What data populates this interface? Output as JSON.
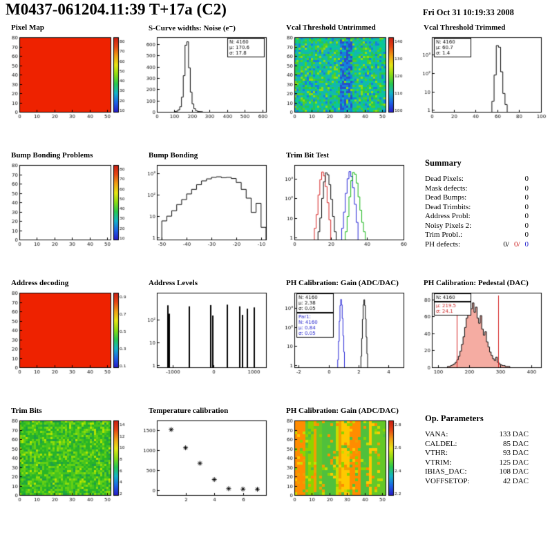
{
  "header": {
    "title": "M0437-061204.11:39 T+17a (C2)",
    "date": "Fri Oct 31 10:19:33 2008"
  },
  "summary": {
    "title": "Summary",
    "rows": [
      {
        "label": "Dead Pixels:",
        "value": "0"
      },
      {
        "label": "Mask defects:",
        "value": "0"
      },
      {
        "label": "Dead Bumps:",
        "value": "0"
      },
      {
        "label": "Dead Trimbits:",
        "value": "0"
      },
      {
        "label": "Address Probl:",
        "value": "0"
      },
      {
        "label": "Noisy Pixels 2:",
        "value": "0"
      },
      {
        "label": "Trim Probl.:",
        "value": "0"
      }
    ],
    "ph_defects": {
      "label": "PH defects:",
      "values": [
        "0/",
        "0/",
        "0"
      ],
      "colors": [
        "#000000",
        "#cc2020",
        "#2020cc"
      ]
    }
  },
  "op_parameters": {
    "title": "Op. Parameters",
    "rows": [
      {
        "label": "VANA:",
        "value": "133 DAC"
      },
      {
        "label": "CALDEL:",
        "value": "85 DAC"
      },
      {
        "label": "VTHR:",
        "value": "93 DAC"
      },
      {
        "label": "VTRIM:",
        "value": "125 DAC"
      },
      {
        "label": "IBIAS_DAC:",
        "value": "108 DAC"
      },
      {
        "label": "VOFFSETOP:",
        "value": "42 DAC"
      }
    ]
  },
  "colors": {
    "map_red": "#ee2200",
    "accent_red": "#cc2020",
    "accent_blue": "#2020cc",
    "accent_green": "#10b410"
  },
  "chart_data": [
    {
      "name": "pixel-map",
      "title": "Pixel Map",
      "type": "heatmap",
      "mode": "uniform",
      "fill_color": "#ee2200",
      "xlim": [
        0,
        52
      ],
      "ylim": [
        0,
        80
      ],
      "xticks": [
        0,
        10,
        20,
        30,
        40,
        50
      ],
      "yticks": [
        0,
        10,
        20,
        30,
        40,
        50,
        60,
        70,
        80
      ],
      "colorbar": {
        "colors": [
          "#281cc8",
          "#1c64e6",
          "#14b4c8",
          "#28c850",
          "#8cdc14",
          "#e6e614",
          "#f0a014",
          "#e64614",
          "#c81e14"
        ],
        "ticks": [
          10,
          20,
          30,
          40,
          50,
          60,
          70,
          80
        ]
      }
    },
    {
      "name": "scurve-noise",
      "title": "S-Curve widths: Noise (e⁻)",
      "type": "histogram",
      "xlim": [
        0,
        620
      ],
      "ylim": [
        0,
        660
      ],
      "xticks": [
        0,
        100,
        200,
        300,
        400,
        500,
        600
      ],
      "yticks": [
        0,
        100,
        200,
        300,
        400,
        500,
        600
      ],
      "series": [
        {
          "color": "#000000",
          "x0": 100,
          "binw": 10,
          "counts": [
            2,
            6,
            18,
            45,
            130,
            320,
            590,
            620,
            390,
            175,
            70,
            28,
            10,
            4,
            2,
            1
          ]
        }
      ],
      "stats": [
        {
          "color": "#000000",
          "lines": [
            "N: 4160",
            "μ: 170.6",
            "σ: 17.8"
          ]
        }
      ],
      "stats_pos": "right"
    },
    {
      "name": "vcal-threshold-untrimmed",
      "title": "Vcal Threshold Untrimmed",
      "type": "heatmap",
      "mode": "noise",
      "colors": [
        "#14b4b4",
        "#0ac896",
        "#28c850",
        "#50d028",
        "#1482dc",
        "#8cdc14"
      ],
      "weights": [
        0.28,
        0.24,
        0.18,
        0.1,
        0.12,
        0.08
      ],
      "band": {
        "x0": 26,
        "x1": 33,
        "colors": [
          "#2850c8",
          "#1482dc"
        ]
      },
      "xlim": [
        0,
        52
      ],
      "ylim": [
        0,
        80
      ],
      "xticks": [
        0,
        10,
        20,
        30,
        40,
        50
      ],
      "yticks": [
        0,
        10,
        20,
        30,
        40,
        50,
        60,
        70,
        80
      ],
      "colorbar": {
        "colors": [
          "#281cc8",
          "#1c64e6",
          "#14b4c8",
          "#28c850",
          "#8cdc14",
          "#e6e614",
          "#f0a014",
          "#e64614",
          "#c81e14"
        ],
        "ticks": [
          100,
          110,
          120,
          130,
          140
        ]
      }
    },
    {
      "name": "vcal-threshold-trimmed",
      "title": "Vcal Threshold Trimmed",
      "type": "histogram",
      "ylog": true,
      "xlim": [
        0,
        100
      ],
      "ylim": [
        0.8,
        9000
      ],
      "xticks": [
        0,
        20,
        40,
        60,
        80,
        100
      ],
      "yticks_log": [
        [
          1,
          "1"
        ],
        [
          10,
          "10"
        ],
        [
          100,
          "10²"
        ],
        [
          1000,
          "10³"
        ]
      ],
      "series": [
        {
          "color": "#000000",
          "x0": 55,
          "binw": 2,
          "counts": [
            3,
            80,
            3200,
            2600,
            120,
            8,
            2
          ]
        }
      ],
      "stats": [
        {
          "color": "#000000",
          "lines": [
            "N: 4160",
            "μ: 60.7",
            "σ: 1.4"
          ]
        }
      ],
      "stats_pos": "left"
    },
    {
      "name": "bump-bonding-problems",
      "title": "Bump Bonding Problems",
      "type": "heatmap",
      "mode": "empty",
      "xlim": [
        0,
        52
      ],
      "ylim": [
        0,
        80
      ],
      "xticks": [
        0,
        10,
        20,
        30,
        40,
        50
      ],
      "yticks": [
        0,
        10,
        20,
        30,
        40,
        50,
        60,
        70,
        80
      ],
      "colorbar": {
        "colors": [
          "#281cc8",
          "#1c64e6",
          "#14b4c8",
          "#28c850",
          "#8cdc14",
          "#e6e614",
          "#f0a014",
          "#e64614",
          "#c81e14"
        ],
        "ticks": [
          10,
          20,
          30,
          40,
          50,
          60,
          70,
          80
        ]
      }
    },
    {
      "name": "bump-bonding",
      "title": "Bump Bonding",
      "type": "histogram",
      "ylog": true,
      "xlim": [
        -52,
        -8
      ],
      "ylim": [
        0.8,
        2500
      ],
      "xticks": [
        -50,
        -40,
        -30,
        -20,
        -10
      ],
      "yticks_log": [
        [
          1,
          "1"
        ],
        [
          10,
          "10"
        ],
        [
          100,
          "10²"
        ],
        [
          1000,
          "10³"
        ]
      ],
      "series": [
        {
          "color": "#000000",
          "x0": -50,
          "binw": 2,
          "counts": [
            6,
            10,
            18,
            35,
            60,
            110,
            180,
            300,
            450,
            560,
            660,
            700,
            640,
            660,
            580,
            380,
            180,
            70,
            15,
            40,
            3
          ]
        }
      ]
    },
    {
      "name": "trim-bit-test",
      "title": "Trim Bit Test",
      "type": "histogram",
      "ylog": true,
      "xlim": [
        0,
        60
      ],
      "ylim": [
        0.8,
        5000
      ],
      "xticks": [
        0,
        20,
        40,
        60
      ],
      "yticks_log": [
        [
          1,
          "1"
        ],
        [
          10,
          "10"
        ],
        [
          100,
          "10²"
        ],
        [
          1000,
          "10³"
        ]
      ],
      "series": [
        {
          "color": "#d42020",
          "x0": 11,
          "binw": 1,
          "counts": [
            3,
            15,
            150,
            900,
            2200,
            1400,
            400,
            60,
            8
          ]
        },
        {
          "color": "#000000",
          "x0": 13,
          "binw": 1,
          "counts": [
            2,
            10,
            100,
            700,
            2000,
            1600,
            500,
            90,
            12,
            2
          ]
        },
        {
          "color": "#2020d4",
          "x0": 26,
          "binw": 1,
          "counts": [
            3,
            20,
            180,
            1000,
            2300,
            1300,
            350,
            50,
            6
          ]
        },
        {
          "color": "#10b410",
          "x0": 28,
          "binw": 1,
          "counts": [
            2,
            12,
            120,
            800,
            2100,
            1700,
            600,
            120,
            25,
            6,
            2
          ]
        }
      ]
    },
    {
      "name": "address-decoding",
      "title": "Address decoding",
      "type": "heatmap",
      "mode": "uniform",
      "fill_color": "#ee2200",
      "xlim": [
        0,
        52
      ],
      "ylim": [
        0,
        80
      ],
      "xticks": [
        0,
        10,
        20,
        30,
        40,
        50
      ],
      "yticks": [
        0,
        10,
        20,
        30,
        40,
        50,
        60,
        70,
        80
      ],
      "colorbar": {
        "colors": [
          "#281cc8",
          "#1c64e6",
          "#14b4c8",
          "#28c850",
          "#8cdc14",
          "#e6e614",
          "#f0a014",
          "#e64614",
          "#c81e14"
        ],
        "ticks": [
          0.1,
          0.3,
          0.5,
          0.7,
          0.9
        ]
      }
    },
    {
      "name": "address-levels",
      "title": "Address Levels",
      "type": "histogram",
      "ylog": true,
      "xlim": [
        -1400,
        1300
      ],
      "ylim": [
        0.8,
        1500
      ],
      "xticks": [
        -1000,
        0,
        1000
      ],
      "yticks_log": [
        [
          1,
          "1"
        ],
        [
          10,
          "10"
        ],
        [
          100,
          "10²"
        ]
      ],
      "series": [
        {
          "color": "#000000",
          "spikes": [
            [
              -1150,
              420
            ],
            [
              -1110,
              180
            ],
            [
              -620,
              380
            ],
            [
              -90,
              430
            ],
            [
              -40,
              150
            ],
            [
              320,
              450
            ],
            [
              640,
              380
            ],
            [
              700,
              160
            ],
            [
              820,
              300
            ],
            [
              1000,
              340
            ]
          ]
        }
      ]
    },
    {
      "name": "ph-calibration-gain",
      "title": "PH Calibration: Gain (ADC/DAC)",
      "type": "histogram",
      "ylog": true,
      "xlim": [
        -2.3,
        5
      ],
      "ylim": [
        0.8,
        6000
      ],
      "xticks": [
        -2,
        0,
        2,
        4
      ],
      "yticks_log": [
        [
          1,
          "1"
        ],
        [
          10,
          "10"
        ],
        [
          100,
          "10²"
        ],
        [
          1000,
          "10³"
        ]
      ],
      "series": [
        {
          "color": "#000000",
          "x0": 2.15,
          "binw": 0.05,
          "counts": [
            3,
            25,
            250,
            1400,
            2600,
            1300,
            260,
            30,
            4
          ]
        },
        {
          "color": "#2020d4",
          "x0": 0.6,
          "binw": 0.05,
          "counts": [
            2,
            18,
            200,
            1300,
            2700,
            1400,
            280,
            35,
            5
          ]
        }
      ],
      "stats": [
        {
          "color": "#000000",
          "lines": [
            "N: 4160",
            "μ: 2.38",
            "σ: 0.05"
          ]
        },
        {
          "color": "#2020cc",
          "lines": [
            "Par1:",
            "N: 4160",
            "μ: 0.84",
            "σ: 0.05"
          ]
        }
      ],
      "stats_pos": "left"
    },
    {
      "name": "ph-calibration-pedestal",
      "title": "PH Calibration: Pedestal (DAC)",
      "type": "histogram",
      "xlim": [
        80,
        430
      ],
      "ylim": [
        0,
        88
      ],
      "xticks": [
        100,
        200,
        300,
        400
      ],
      "yticks": [
        0,
        20,
        40,
        60,
        80
      ],
      "series": [
        {
          "color": "#000000",
          "fill": "#e84830",
          "x0": 130,
          "binw": 5,
          "counts": [
            1,
            1,
            2,
            3,
            4,
            6,
            9,
            13,
            19,
            27,
            36,
            47,
            58,
            67,
            73,
            69,
            76,
            65,
            71,
            58,
            52,
            61,
            45,
            38,
            42,
            30,
            24,
            18,
            14,
            10,
            8,
            12,
            6,
            4,
            3,
            2,
            2,
            1,
            1,
            1
          ]
        }
      ],
      "vlines": [
        {
          "x": 160,
          "color": "#d42020"
        },
        {
          "x": 292,
          "color": "#d42020"
        }
      ],
      "stats": [
        {
          "color": "#000000",
          "lines": [
            "N: 4160"
          ]
        },
        {
          "color": "#cc2020",
          "lines": [
            "μ: 219.5",
            "σ: 24.1"
          ]
        }
      ],
      "stats_pos": "left"
    },
    {
      "name": "trim-bits",
      "title": "Trim Bits",
      "type": "heatmap",
      "mode": "noise",
      "colors": [
        "#28b428",
        "#46c41e",
        "#64d014",
        "#8cdc0a",
        "#b4e400",
        "#1ea046"
      ],
      "weights": [
        0.3,
        0.25,
        0.2,
        0.1,
        0.05,
        0.1
      ],
      "xlim": [
        0,
        52
      ],
      "ylim": [
        0,
        80
      ],
      "xticks": [
        0,
        10,
        20,
        30,
        40,
        50
      ],
      "yticks": [
        0,
        10,
        20,
        30,
        40,
        50,
        60,
        70,
        80
      ],
      "colorbar": {
        "colors": [
          "#281cc8",
          "#1c64e6",
          "#14b4c8",
          "#28c850",
          "#8cdc14",
          "#e6e614",
          "#f0a014",
          "#e64614",
          "#c81e14"
        ],
        "ticks": [
          2,
          4,
          6,
          8,
          10,
          12,
          14
        ]
      }
    },
    {
      "name": "temperature-calibration",
      "title": "Temperature calibration",
      "type": "scatter",
      "marker": "asterisk",
      "points": [
        [
          1,
          1520
        ],
        [
          2,
          1060
        ],
        [
          3,
          670
        ],
        [
          4,
          260
        ],
        [
          5,
          30
        ],
        [
          6,
          20
        ],
        [
          7,
          15
        ]
      ],
      "xlim": [
        0,
        7.6
      ],
      "ylim": [
        -130,
        1750
      ],
      "xticks": [
        2,
        4,
        6
      ],
      "yticks": [
        0,
        500,
        1000,
        1500
      ]
    },
    {
      "name": "ph-gain-map",
      "title": "PH Calibration: Gain (ADC/DAC)",
      "type": "heatmap",
      "mode": "stripes",
      "colors": [
        "#f0a000",
        "#ffc800",
        "#c8dc00",
        "#64c828",
        "#8cd400",
        "#ff8c00",
        "#50c03c"
      ],
      "xlim": [
        0,
        52
      ],
      "ylim": [
        0,
        80
      ],
      "xticks": [
        0,
        10,
        20,
        30,
        40,
        50
      ],
      "yticks": [
        0,
        10,
        20,
        30,
        40,
        50,
        60,
        70,
        80
      ],
      "colorbar": {
        "colors": [
          "#281cc8",
          "#1c64e6",
          "#14b4c8",
          "#28c850",
          "#8cdc14",
          "#e6e614",
          "#f0a014",
          "#e64614",
          "#c81e14"
        ],
        "ticks": [
          2.2,
          2.4,
          2.6,
          2.8
        ]
      }
    }
  ]
}
